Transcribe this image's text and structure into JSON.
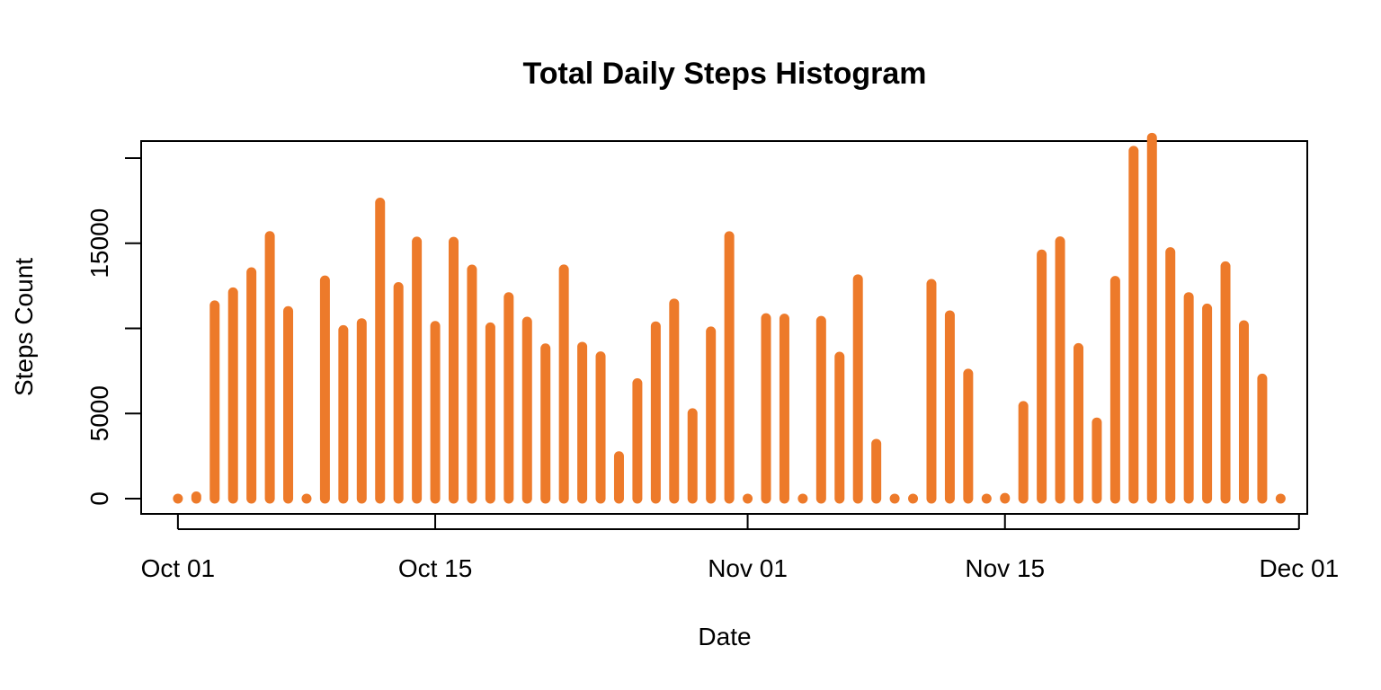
{
  "colors": {
    "bar": "#ED7A2A",
    "axis": "#000000",
    "background": "#ffffff"
  },
  "chart_data": {
    "type": "bar",
    "title": "Total Daily Steps Histogram",
    "xlabel": "Date",
    "ylabel": "Steps Count",
    "ylim": [
      -900,
      21000
    ],
    "xlim": [
      "2012-09-29",
      "2012-12-01"
    ],
    "y_ticks": [
      0,
      5000,
      10000,
      15000,
      20000
    ],
    "y_tick_labels": [
      "0",
      "5000",
      "",
      "15000",
      ""
    ],
    "x_ticks": [
      "2012-10-01",
      "2012-10-15",
      "2012-11-01",
      "2012-11-15",
      "2012-12-01"
    ],
    "x_tick_labels": [
      "Oct 01",
      "Oct 15",
      "Nov 01",
      "Nov 15",
      "Dec 01"
    ],
    "grid": false,
    "dates": [
      "2012-10-01",
      "2012-10-02",
      "2012-10-03",
      "2012-10-04",
      "2012-10-05",
      "2012-10-06",
      "2012-10-07",
      "2012-10-08",
      "2012-10-09",
      "2012-10-10",
      "2012-10-11",
      "2012-10-12",
      "2012-10-13",
      "2012-10-14",
      "2012-10-15",
      "2012-10-16",
      "2012-10-17",
      "2012-10-18",
      "2012-10-19",
      "2012-10-20",
      "2012-10-21",
      "2012-10-22",
      "2012-10-23",
      "2012-10-24",
      "2012-10-25",
      "2012-10-26",
      "2012-10-27",
      "2012-10-28",
      "2012-10-29",
      "2012-10-30",
      "2012-10-31",
      "2012-11-01",
      "2012-11-02",
      "2012-11-03",
      "2012-11-04",
      "2012-11-05",
      "2012-11-06",
      "2012-11-07",
      "2012-11-08",
      "2012-11-09",
      "2012-11-10",
      "2012-11-11",
      "2012-11-12",
      "2012-11-13",
      "2012-11-14",
      "2012-11-15",
      "2012-11-16",
      "2012-11-17",
      "2012-11-18",
      "2012-11-19",
      "2012-11-20",
      "2012-11-21",
      "2012-11-22",
      "2012-11-23",
      "2012-11-24",
      "2012-11-25",
      "2012-11-26",
      "2012-11-27",
      "2012-11-28",
      "2012-11-29",
      "2012-11-30"
    ],
    "values": [
      0,
      126,
      11352,
      12116,
      13294,
      15420,
      11015,
      0,
      12811,
      9900,
      10304,
      17382,
      12426,
      15098,
      10139,
      15084,
      13452,
      10056,
      11829,
      10395,
      8821,
      13460,
      8918,
      8355,
      2492,
      6778,
      10119,
      11458,
      5018,
      9819,
      15414,
      0,
      10600,
      10571,
      0,
      10439,
      8334,
      12883,
      3219,
      0,
      0,
      12608,
      10765,
      7336,
      0,
      41,
      5441,
      14339,
      15110,
      8841,
      4472,
      12787,
      20427,
      21194,
      14478,
      11834,
      11162,
      13646,
      10183,
      7047,
      0
    ]
  }
}
